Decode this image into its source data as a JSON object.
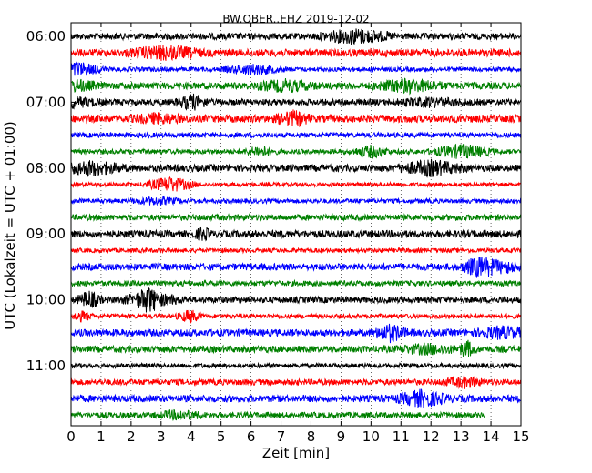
{
  "chart_data": {
    "type": "line",
    "title": "BW.OBER..EHZ 2019-12-02",
    "xlabel": "Zeit  [min]",
    "ylabel": "UTC (Lokalzeit = UTC + 01:00)",
    "xlim": [
      0,
      15
    ],
    "x_ticks": [
      "0",
      "1",
      "2",
      "3",
      "4",
      "5",
      "6",
      "7",
      "8",
      "9",
      "10",
      "11",
      "12",
      "13",
      "14",
      "15"
    ],
    "y_ticks": [
      "06:00",
      "07:00",
      "08:00",
      "09:00",
      "10:00",
      "11:00"
    ],
    "trace_colors": [
      "#000000",
      "#ff0000",
      "#0000ff",
      "#008000"
    ],
    "grid": "vertical dotted",
    "series": [
      {
        "start": "06:00",
        "color": "#000000"
      },
      {
        "start": "06:15",
        "color": "#ff0000"
      },
      {
        "start": "06:30",
        "color": "#0000ff"
      },
      {
        "start": "06:45",
        "color": "#008000"
      },
      {
        "start": "07:00",
        "color": "#000000"
      },
      {
        "start": "07:15",
        "color": "#ff0000"
      },
      {
        "start": "07:30",
        "color": "#0000ff"
      },
      {
        "start": "07:45",
        "color": "#008000"
      },
      {
        "start": "08:00",
        "color": "#000000"
      },
      {
        "start": "08:15",
        "color": "#ff0000"
      },
      {
        "start": "08:30",
        "color": "#0000ff"
      },
      {
        "start": "08:45",
        "color": "#008000"
      },
      {
        "start": "09:00",
        "color": "#000000"
      },
      {
        "start": "09:15",
        "color": "#ff0000"
      },
      {
        "start": "09:30",
        "color": "#0000ff"
      },
      {
        "start": "09:45",
        "color": "#008000"
      },
      {
        "start": "10:00",
        "color": "#000000"
      },
      {
        "start": "10:15",
        "color": "#ff0000"
      },
      {
        "start": "10:30",
        "color": "#0000ff"
      },
      {
        "start": "10:45",
        "color": "#008000"
      },
      {
        "start": "11:00",
        "color": "#000000"
      },
      {
        "start": "11:15",
        "color": "#ff0000"
      },
      {
        "start": "11:30",
        "color": "#0000ff"
      },
      {
        "start": "11:45",
        "color": "#008000"
      }
    ]
  }
}
